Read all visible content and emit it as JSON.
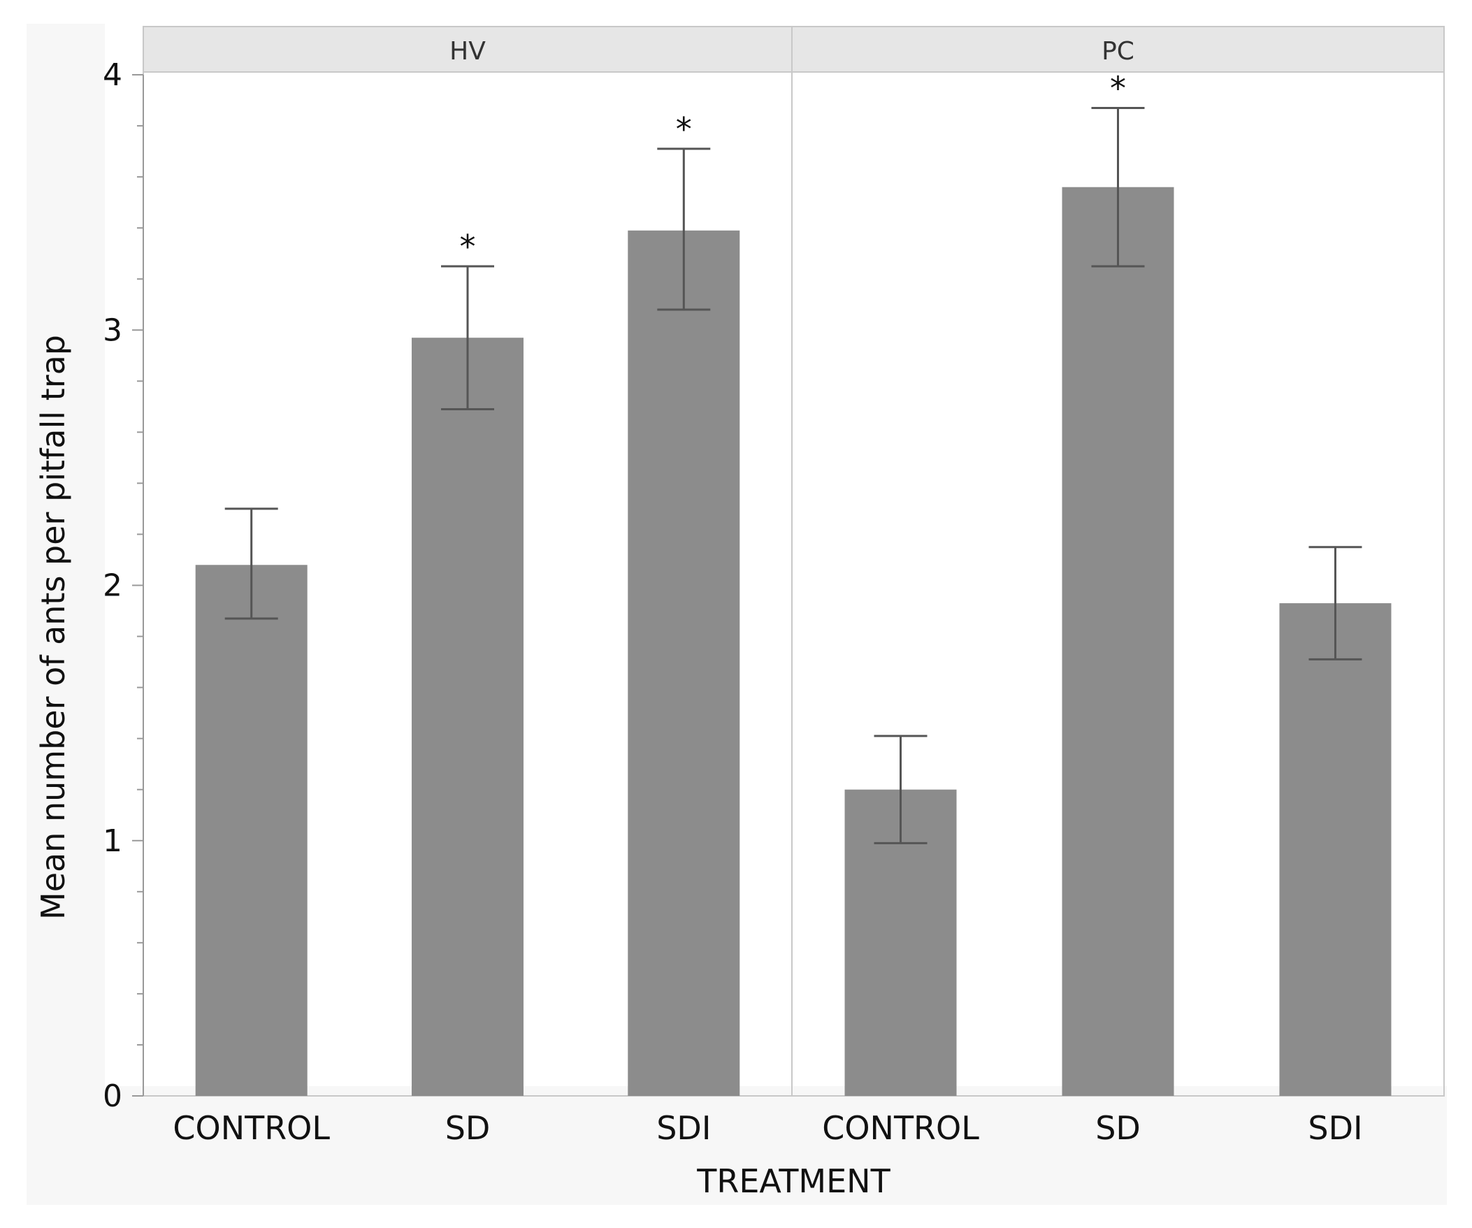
{
  "chart_data": {
    "type": "bar",
    "title": "",
    "xlabel": "TREATMENT",
    "ylabel": "Mean number of ants per pitfall trap",
    "ylim": [
      0,
      4
    ],
    "yticks": [
      "0",
      "1",
      "2",
      "3",
      "4"
    ],
    "grid": false,
    "legend": "none",
    "colors": {
      "bar": "#8c8c8c",
      "errorbar": "#555555",
      "axis": "#999999",
      "facet_header": "#e6e6e6",
      "background": "#ffffff",
      "frame": "#c8c8c8"
    },
    "panels": [
      {
        "name": "HV",
        "categories": [
          "CONTROL",
          "SD",
          "SDI"
        ],
        "values": [
          2.08,
          2.97,
          3.39
        ],
        "error_lower": [
          1.87,
          2.69,
          3.08
        ],
        "error_upper": [
          2.3,
          3.25,
          3.71
        ],
        "significance": [
          "",
          "*",
          "*"
        ]
      },
      {
        "name": "PC",
        "categories": [
          "CONTROL",
          "SD",
          "SDI"
        ],
        "values": [
          1.2,
          3.56,
          1.93
        ],
        "error_lower": [
          0.99,
          3.25,
          1.71
        ],
        "error_upper": [
          1.41,
          3.87,
          2.15
        ],
        "significance": [
          "",
          "*",
          ""
        ]
      }
    ]
  }
}
